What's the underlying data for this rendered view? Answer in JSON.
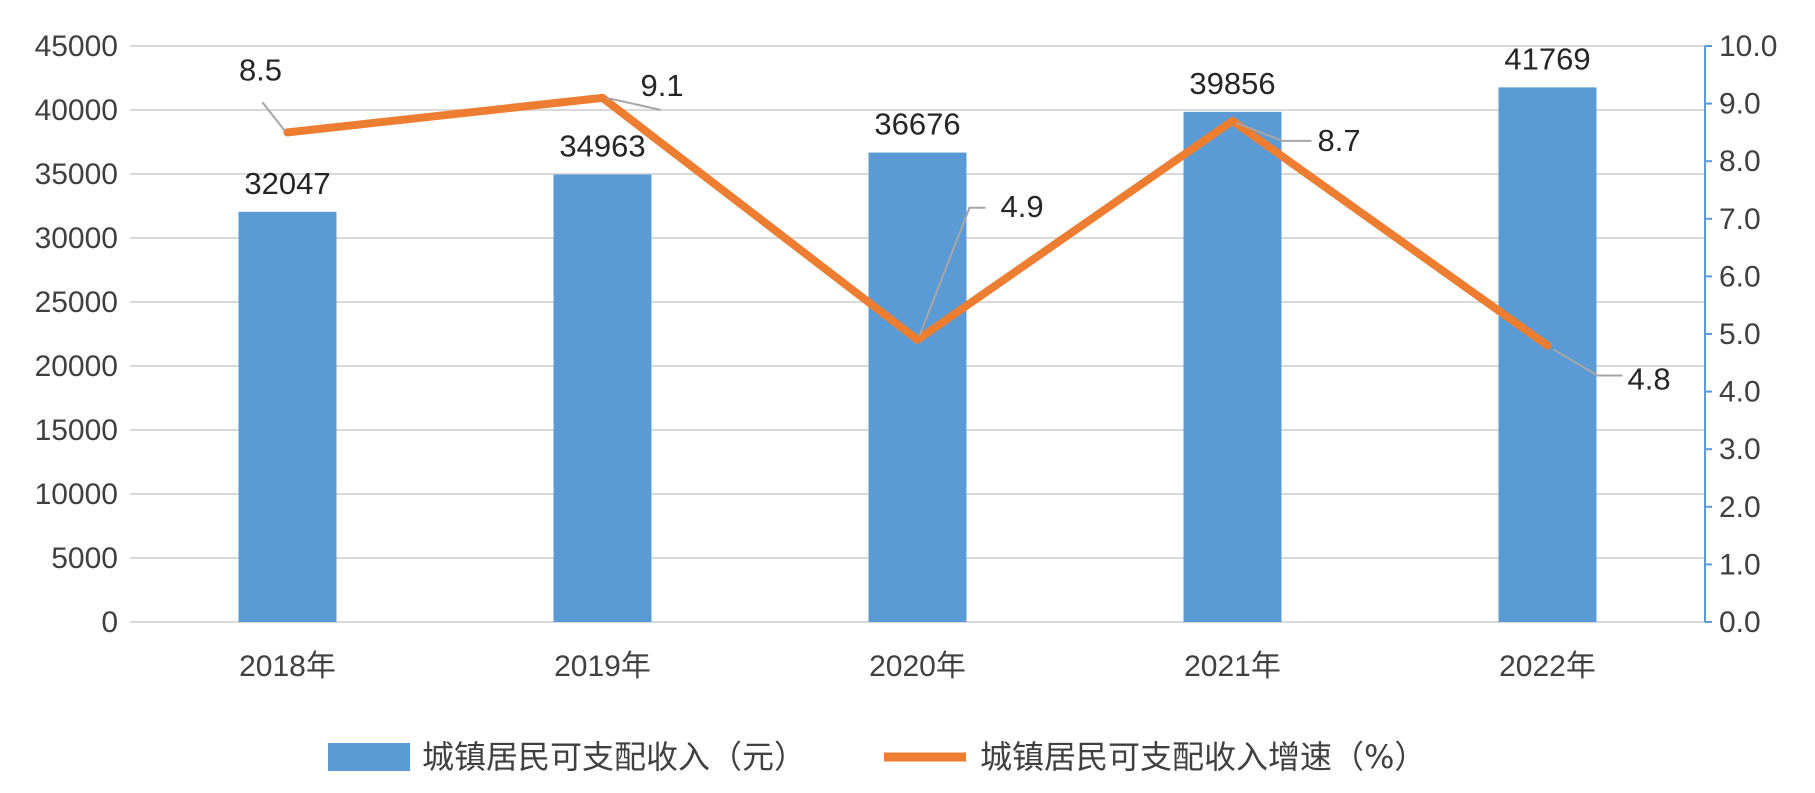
{
  "chart_data": {
    "type": "bar",
    "categories": [
      "2018年",
      "2019年",
      "2020年",
      "2021年",
      "2022年"
    ],
    "series": [
      {
        "name": "城镇居民可支配收入（元）",
        "type": "bar",
        "axis": "left",
        "color": "#5B9BD5",
        "values": [
          32047,
          34963,
          36676,
          39856,
          41769
        ],
        "labels": [
          "32047",
          "34963",
          "36676",
          "39856",
          "41769"
        ]
      },
      {
        "name": "城镇居民可支配收入增速（%）",
        "type": "line",
        "axis": "right",
        "color": "#ED7D31",
        "values": [
          8.5,
          9.1,
          4.9,
          8.7,
          4.8
        ],
        "labels": [
          "8.5",
          "9.1",
          "4.9",
          "8.7",
          "4.8"
        ]
      }
    ],
    "y_left": {
      "min": 0,
      "max": 45000,
      "ticks": [
        0,
        5000,
        10000,
        15000,
        20000,
        25000,
        30000,
        35000,
        40000,
        45000
      ],
      "tick_labels": [
        "0",
        "5000",
        "10000",
        "15000",
        "20000",
        "25000",
        "30000",
        "35000",
        "40000",
        "45000"
      ]
    },
    "y_right": {
      "min": 0,
      "max": 10,
      "ticks": [
        0,
        1,
        2,
        3,
        4,
        5,
        6,
        7,
        8,
        9,
        10
      ],
      "tick_labels": [
        "0.0",
        "1.0",
        "2.0",
        "3.0",
        "4.0",
        "5.0",
        "6.0",
        "7.0",
        "8.0",
        "9.0",
        "10.0"
      ]
    },
    "grid": true,
    "legend_position": "bottom",
    "colors": {
      "grid": "#d9d9d9",
      "right_axis": "#5B9BD5",
      "leader": "#a6a6a6"
    }
  }
}
